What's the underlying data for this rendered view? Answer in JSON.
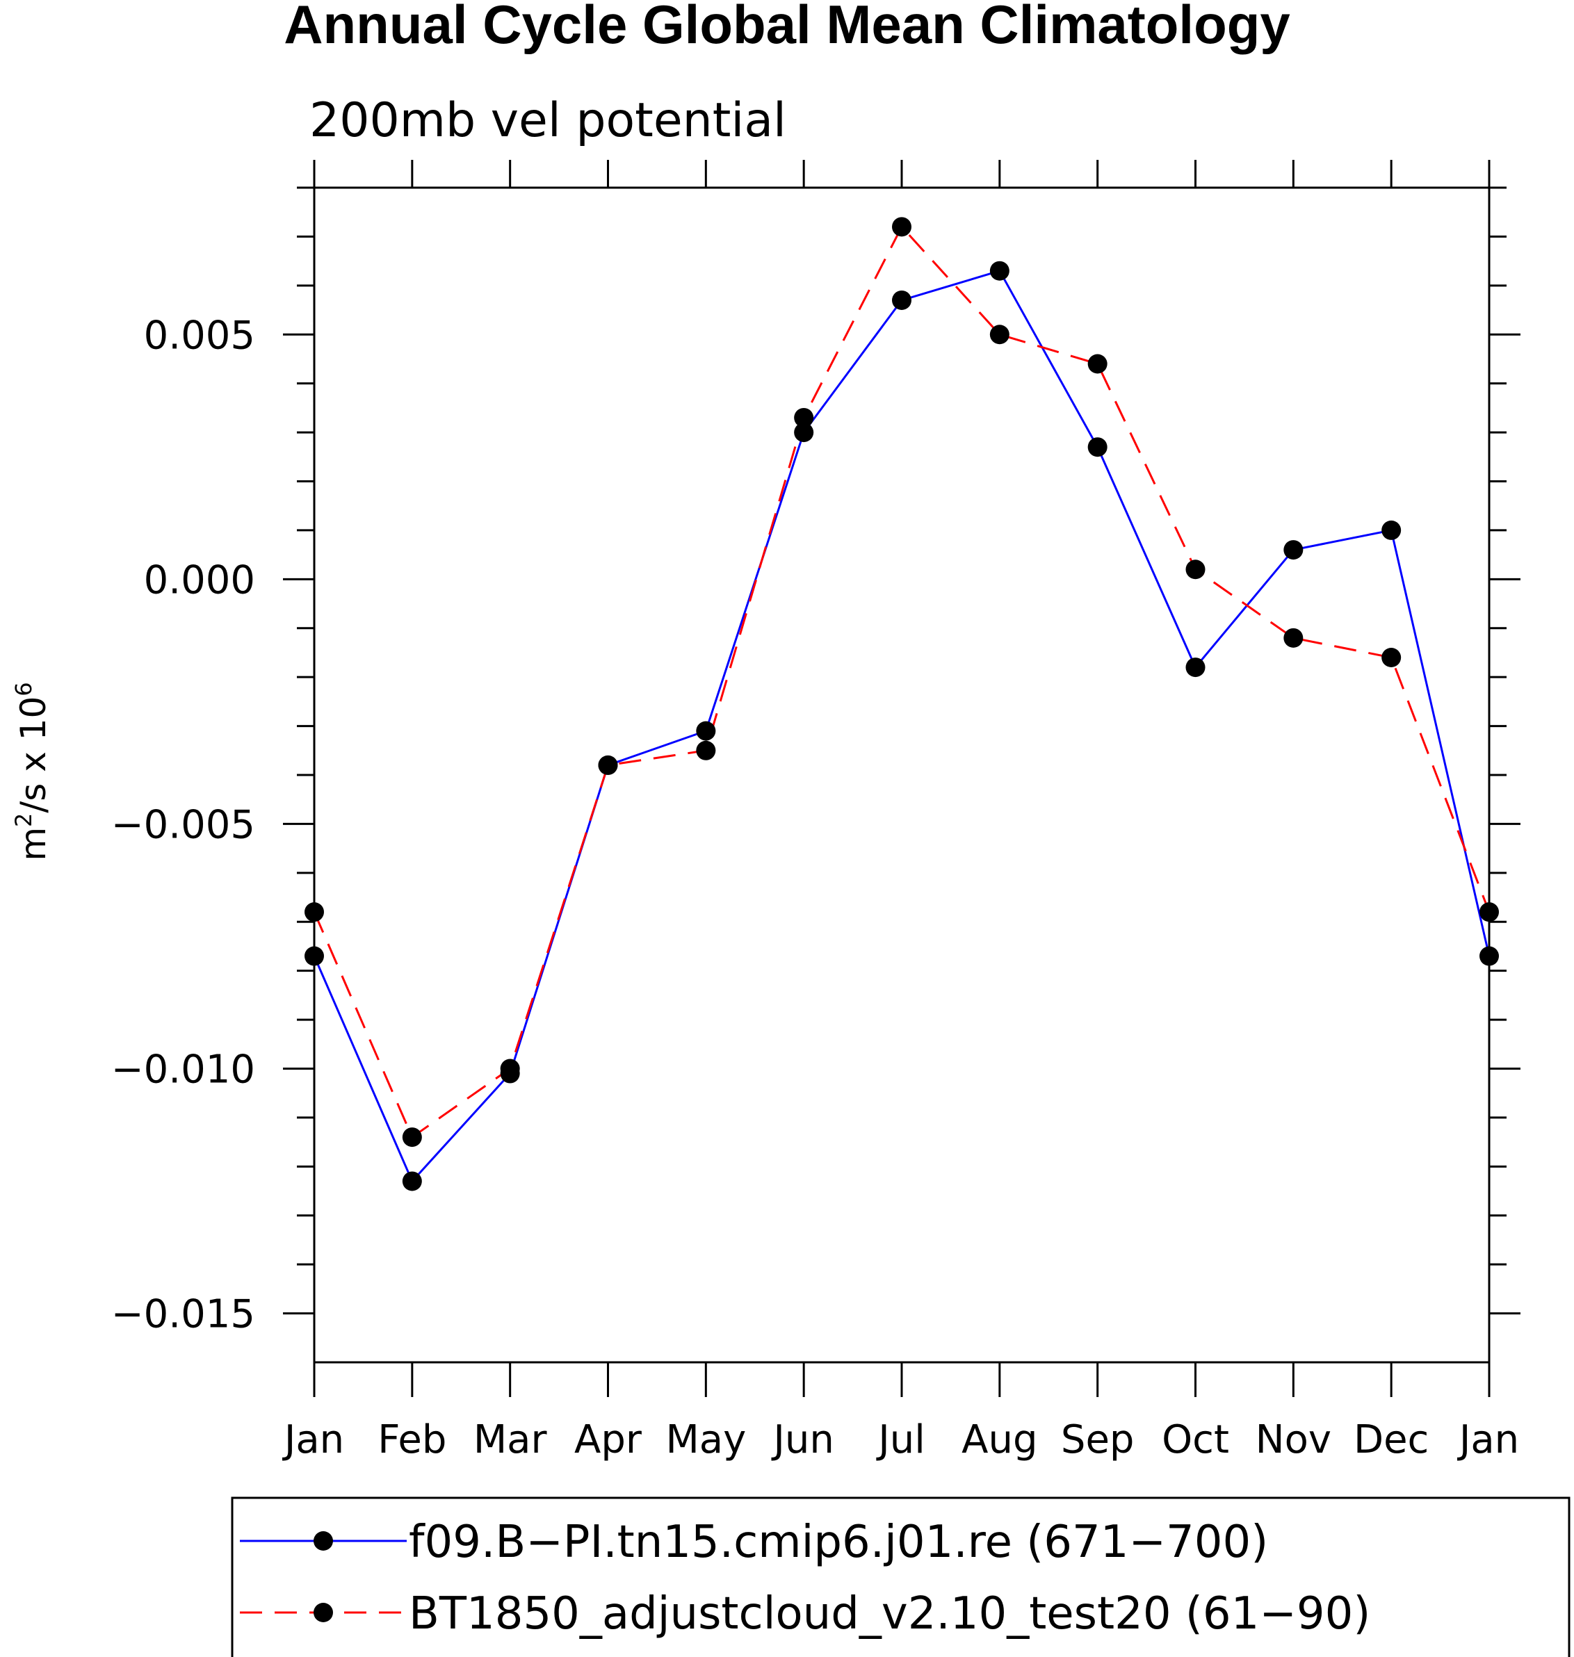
{
  "chart_data": {
    "type": "line",
    "title": "Annual Cycle Global Mean Climatology",
    "subtitle": "200mb vel potential",
    "ylabel_base": "m",
    "ylabel_sup1": "2",
    "ylabel_mid": "/s x 10",
    "ylabel_sup2": "6",
    "xlabel": "",
    "categories": [
      "Jan",
      "Feb",
      "Mar",
      "Apr",
      "May",
      "Jun",
      "Jul",
      "Aug",
      "Sep",
      "Oct",
      "Nov",
      "Dec",
      "Jan"
    ],
    "ylim": [
      -0.016,
      0.008
    ],
    "yticks": [
      0.005,
      0.0,
      -0.005,
      -0.01,
      -0.015
    ],
    "ytick_labels": [
      "0.005",
      "0.000",
      "−0.005",
      "−0.010",
      "−0.015"
    ],
    "grid": false,
    "legend_position": "bottom",
    "series": [
      {
        "name": "f09.B−PI.tn15.cmip6.j01.re (671−700)",
        "color": "#0000ff",
        "dash": "solid",
        "values": [
          -0.0077,
          -0.0123,
          -0.0101,
          -0.0038,
          -0.0031,
          0.003,
          0.0057,
          0.0063,
          0.0027,
          -0.0018,
          0.0006,
          0.001,
          -0.0077
        ]
      },
      {
        "name": "BT1850_adjustcloud_v2.10_test20 (61−90)",
        "color": "#ff0000",
        "dash": "dashed",
        "values": [
          -0.0068,
          -0.0114,
          -0.01,
          -0.0038,
          -0.0035,
          0.0033,
          0.0072,
          0.005,
          0.0044,
          0.0002,
          -0.0012,
          -0.0016,
          -0.0068
        ]
      }
    ]
  }
}
